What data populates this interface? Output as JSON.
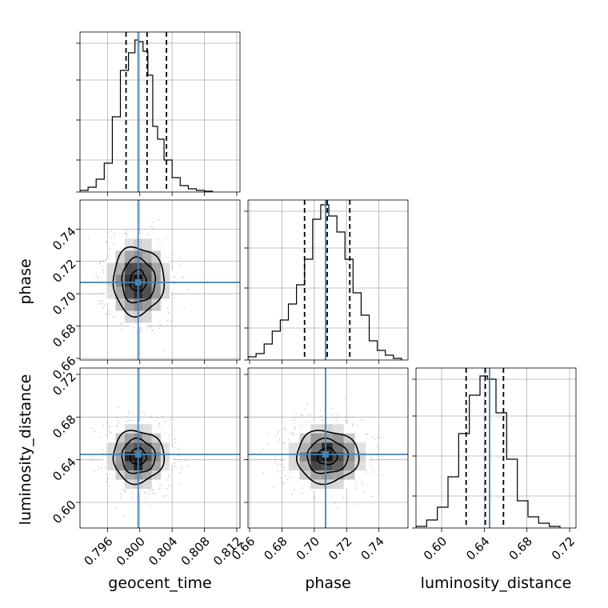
{
  "chart_data": {
    "type": "corner",
    "parameters": [
      "geocent_time",
      "phase",
      "luminosity_distance"
    ],
    "truths": {
      "geocent_time": 0.7998,
      "phase": 0.707,
      "luminosity_distance": 0.645
    },
    "quantiles": {
      "geocent_time": [
        0.7983,
        0.8009,
        0.8033
      ],
      "phase": [
        0.694,
        0.708,
        0.722
      ],
      "luminosity_distance": [
        0.623,
        0.641,
        0.658
      ]
    },
    "ranges": {
      "geocent_time": [
        0.7926,
        0.8124
      ],
      "phase": [
        0.659,
        0.758
      ],
      "luminosity_distance": [
        0.576,
        0.726
      ]
    },
    "ticks": {
      "geocent_time": [
        0.796,
        0.8,
        0.804,
        0.808,
        0.812
      ],
      "phase": [
        0.66,
        0.68,
        0.7,
        0.72,
        0.74
      ],
      "luminosity_distance": [
        0.6,
        0.64,
        0.68,
        0.72
      ]
    },
    "tick_labels": {
      "geocent_time": [
        "0.796",
        "0.800",
        "0.804",
        "0.808",
        "0.812"
      ],
      "phase": [
        "0.66",
        "0.68",
        "0.70",
        "0.72",
        "0.74"
      ],
      "luminosity_distance": [
        "0.60",
        "0.64",
        "0.68",
        "0.72"
      ]
    },
    "histograms": {
      "geocent_time": {
        "edges": [
          0.7926,
          0.7936,
          0.7946,
          0.7956,
          0.7966,
          0.7976,
          0.7986,
          0.7994,
          0.7998,
          0.8004,
          0.801,
          0.8016,
          0.8022,
          0.803,
          0.804,
          0.805,
          0.806,
          0.807,
          0.808,
          0.809
        ],
        "counts": [
          0.01,
          0.03,
          0.08,
          0.18,
          0.47,
          0.76,
          0.87,
          0.95,
          0.94,
          0.88,
          0.73,
          0.41,
          0.33,
          0.2,
          0.09,
          0.04,
          0.02,
          0.01,
          0.005
        ]
      },
      "phase": {
        "edges": [
          0.659,
          0.664,
          0.669,
          0.674,
          0.679,
          0.684,
          0.689,
          0.694,
          0.699,
          0.704,
          0.709,
          0.714,
          0.719,
          0.724,
          0.729,
          0.734,
          0.739,
          0.744,
          0.749,
          0.754
        ],
        "counts": [
          0.02,
          0.04,
          0.1,
          0.18,
          0.25,
          0.35,
          0.47,
          0.63,
          0.88,
          0.97,
          0.9,
          0.8,
          0.63,
          0.42,
          0.28,
          0.12,
          0.06,
          0.03,
          0.01
        ]
      },
      "luminosity_distance": {
        "edges": [
          0.576,
          0.586,
          0.596,
          0.606,
          0.616,
          0.626,
          0.636,
          0.643,
          0.651,
          0.661,
          0.671,
          0.681,
          0.691,
          0.701,
          0.711
        ],
        "counts": [
          0.01,
          0.05,
          0.13,
          0.32,
          0.59,
          0.83,
          0.95,
          0.93,
          0.72,
          0.43,
          0.17,
          0.07,
          0.03,
          0.01
        ]
      }
    },
    "contours_2d": [
      {
        "x": "geocent_time",
        "y": "phase",
        "center": [
          0.7998,
          0.708
        ],
        "sigma": [
          0.0018,
          0.012
        ]
      },
      {
        "x": "geocent_time",
        "y": "luminosity_distance",
        "center": [
          0.7998,
          0.643
        ],
        "sigma": [
          0.0018,
          0.014
        ]
      },
      {
        "x": "phase",
        "y": "luminosity_distance",
        "center": [
          0.708,
          0.643
        ],
        "sigma": [
          0.011,
          0.014
        ]
      }
    ],
    "line_colors": {
      "truth": "#4682b4",
      "histogram": "#000000",
      "contour": "#000000",
      "grid": "#b0b0b0",
      "points": "#7f7f7f"
    },
    "grid": true
  }
}
